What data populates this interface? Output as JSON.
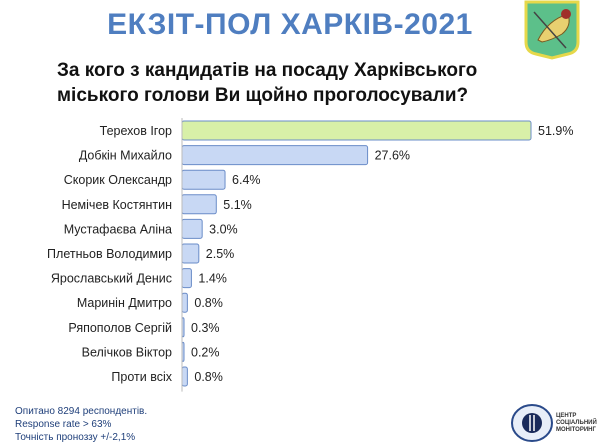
{
  "header": {
    "title": "ЕКЗІТ-ПОЛ ХАРКІВ-2021",
    "question_line1": "За кого з кандидатів на посаду Харківського",
    "question_line2": "міського голови Ви щойно проголосували?"
  },
  "chart_data": {
    "type": "bar",
    "orientation": "horizontal",
    "categories": [
      "Терехов Ігор",
      "Добкін Михайло",
      "Скорик Олександр",
      "Немічев Костянтин",
      "Мустафаєва Аліна",
      "Плетньов Володимир",
      "Ярославський Денис",
      "Маринін Дмитро",
      "Ряпополов Сергій",
      "Велічков Віктор",
      "Проти всіх"
    ],
    "values": [
      51.9,
      27.6,
      6.4,
      5.1,
      3.0,
      2.5,
      1.4,
      0.8,
      0.3,
      0.2,
      0.8
    ],
    "labels": [
      "51.9%",
      "27.6%",
      "6.4%",
      "5.1%",
      "3.0%",
      "2.5%",
      "1.4%",
      "0.8%",
      "0.3%",
      "0.2%",
      "0.8%"
    ],
    "colors": {
      "leader": "#d8f0a8",
      "others": "#c8d8f4",
      "border": "#6a8cc8"
    },
    "grid": false
  },
  "footer": {
    "line1": "Опитано 8294 респондентів.",
    "line2": "Response rate > 63%",
    "line3": "Точність проноззу  +/-2,1%"
  },
  "logo": {
    "text": "ЦЕНТР СОЦІАЛЬНИЙ МОНІТОРИНГ"
  }
}
